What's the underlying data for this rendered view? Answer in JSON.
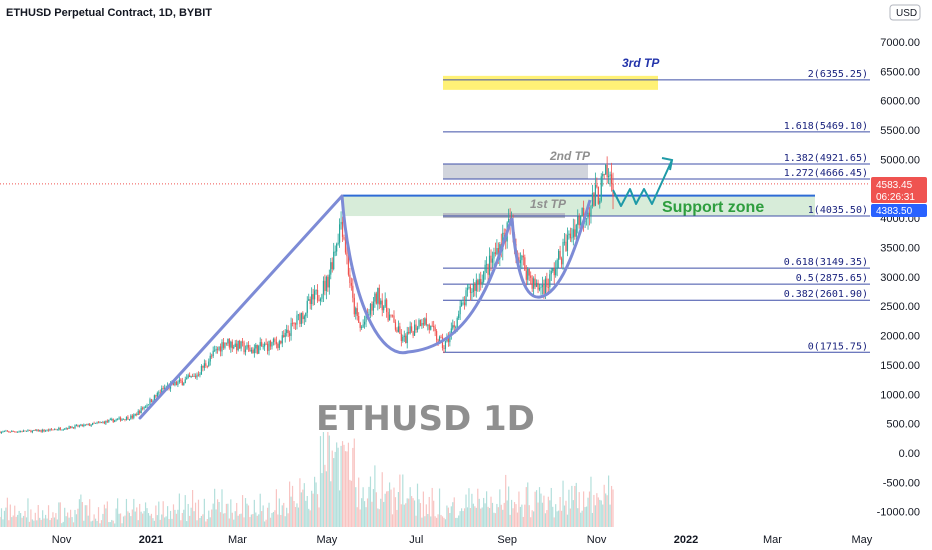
{
  "header": {
    "title": "ETHUSD Perpetual Contract, 1D, BYBIT"
  },
  "currency_button": "USD",
  "watermark": "ETHUSD 1D",
  "price_badges": {
    "last": "4583.45",
    "countdown": "06:26:31",
    "other": "4383.50",
    "last_color": "#ef5350",
    "other_color": "#2962ff"
  },
  "annotations": {
    "tp3": "3rd TP",
    "tp2": "2nd TP",
    "tp1": "1st TP",
    "support": "Support zone"
  },
  "colors": {
    "up": "#26a69a",
    "down": "#ef5350",
    "fib_line": "#3f4fa8",
    "pattern": "#7d8bd6",
    "support_fill": "#d7ecd9",
    "tp3_fill": "#fff176",
    "tp2_fill": "#d1d4dc",
    "projection": "#1e9aa7"
  },
  "fib_levels": [
    {
      "ratio": "2",
      "price": 6355.25,
      "label": "2(6355.25)"
    },
    {
      "ratio": "1.618",
      "price": 5469.1,
      "label": "1.618(5469.10)"
    },
    {
      "ratio": "1.382",
      "price": 4921.65,
      "label": "1.382(4921.65)"
    },
    {
      "ratio": "1.272",
      "price": 4666.45,
      "label": "1.272(4666.45)"
    },
    {
      "ratio": "1",
      "price": 4035.5,
      "label": "1(4035.50)"
    },
    {
      "ratio": "0.618",
      "price": 3149.35,
      "label": "0.618(3149.35)"
    },
    {
      "ratio": "0.5",
      "price": 2875.65,
      "label": "0.5(2875.65)"
    },
    {
      "ratio": "0.382",
      "price": 2601.9,
      "label": "0.382(2601.90)"
    },
    {
      "ratio": "0",
      "price": 1715.75,
      "label": "0(1715.75)"
    }
  ],
  "chart_data": {
    "type": "candlestick",
    "title": "ETHUSD Perpetual Contract, 1D, BYBIT",
    "ylabel": "USD",
    "ylim": [
      -1000,
      7500
    ],
    "y_ticks": [
      "7000.00",
      "6500.00",
      "6000.00",
      "5500.00",
      "5000.00",
      "4500.00",
      "4000.00",
      "3500.00",
      "3000.00",
      "2500.00",
      "2000.00",
      "1500.00",
      "1000.00",
      "500.00",
      "0.00",
      "-500.00",
      "-1000.00"
    ],
    "y_tick_values": [
      7000,
      6500,
      6000,
      5500,
      5000,
      4500,
      4000,
      3500,
      3000,
      2500,
      2000,
      1500,
      1000,
      500,
      0,
      -500,
      -1000
    ],
    "x_ticks": [
      "Nov",
      "2021",
      "Mar",
      "May",
      "Jul",
      "Sep",
      "Nov",
      "2022",
      "Mar",
      "May"
    ],
    "x_tick_dates": [
      "2020-11-01",
      "2021-01-01",
      "2021-03-01",
      "2021-05-01",
      "2021-07-01",
      "2021-09-01",
      "2021-11-01",
      "2022-01-01",
      "2022-03-01",
      "2022-05-01"
    ],
    "x_tick_bold": [
      "2021",
      "2022"
    ],
    "date_range": [
      "2020-09-20",
      "2022-05-01"
    ],
    "price_path": [
      {
        "date": "2020-09-20",
        "close": 360
      },
      {
        "date": "2020-10-20",
        "close": 380
      },
      {
        "date": "2020-11-20",
        "close": 480
      },
      {
        "date": "2020-12-20",
        "close": 620
      },
      {
        "date": "2021-01-10",
        "close": 1100
      },
      {
        "date": "2021-01-31",
        "close": 1300
      },
      {
        "date": "2021-02-20",
        "close": 1900
      },
      {
        "date": "2021-03-10",
        "close": 1750
      },
      {
        "date": "2021-03-31",
        "close": 1900
      },
      {
        "date": "2021-04-15",
        "close": 2400
      },
      {
        "date": "2021-05-01",
        "close": 2900
      },
      {
        "date": "2021-05-11",
        "close": 4000
      },
      {
        "date": "2021-05-19",
        "close": 2500
      },
      {
        "date": "2021-05-24",
        "close": 2100
      },
      {
        "date": "2021-06-05",
        "close": 2700
      },
      {
        "date": "2021-06-22",
        "close": 1900
      },
      {
        "date": "2021-07-05",
        "close": 2300
      },
      {
        "date": "2021-07-20",
        "close": 1800
      },
      {
        "date": "2021-08-05",
        "close": 2700
      },
      {
        "date": "2021-08-20",
        "close": 3200
      },
      {
        "date": "2021-09-03",
        "close": 3900
      },
      {
        "date": "2021-09-08",
        "close": 3400
      },
      {
        "date": "2021-09-21",
        "close": 2800
      },
      {
        "date": "2021-09-29",
        "close": 2900
      },
      {
        "date": "2021-10-10",
        "close": 3500
      },
      {
        "date": "2021-10-20",
        "close": 4000
      },
      {
        "date": "2021-10-30",
        "close": 4300
      },
      {
        "date": "2021-11-08",
        "close": 4700
      },
      {
        "date": "2021-11-13",
        "close": 4580
      }
    ],
    "volume_ylim": [
      0,
      1
    ]
  }
}
